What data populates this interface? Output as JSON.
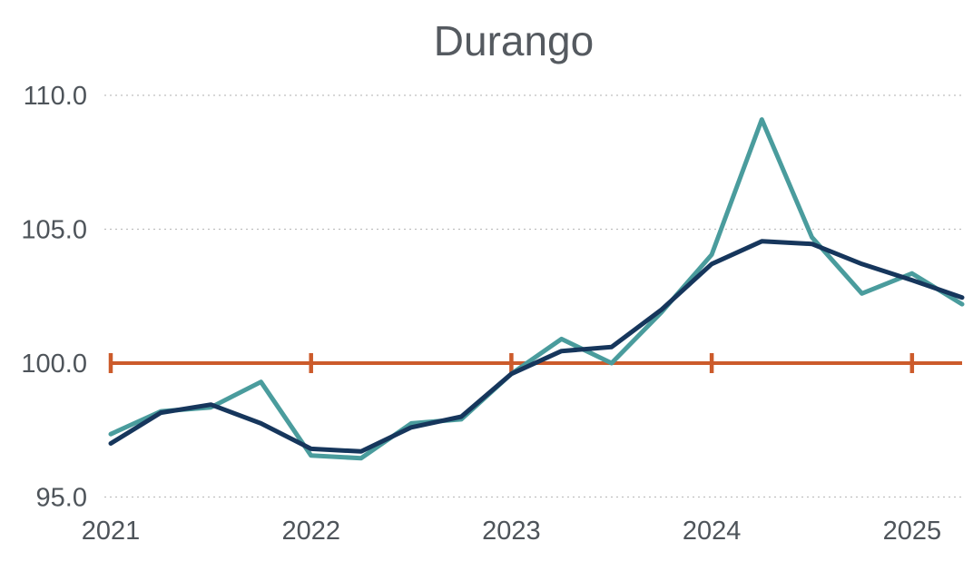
{
  "chart_data": {
    "type": "line",
    "title": "Durango",
    "xlabel": "",
    "ylabel": "",
    "x": [
      2021.0,
      2021.25,
      2021.5,
      2021.75,
      2022.0,
      2022.25,
      2022.5,
      2022.75,
      2023.0,
      2023.25,
      2023.5,
      2023.75,
      2024.0,
      2024.25,
      2024.5,
      2024.75,
      2025.0,
      2025.25
    ],
    "series": [
      {
        "name": "series-teal",
        "color": "#4A9C9D",
        "values": [
          97.35,
          98.2,
          98.35,
          99.3,
          96.55,
          96.45,
          97.75,
          97.9,
          99.6,
          100.9,
          100.0,
          101.9,
          104.05,
          109.1,
          104.7,
          102.6,
          103.35,
          102.2
        ]
      },
      {
        "name": "series-navy",
        "color": "#16365C",
        "values": [
          97.0,
          98.15,
          98.45,
          97.75,
          96.8,
          96.7,
          97.6,
          98.0,
          99.6,
          100.45,
          100.6,
          102.0,
          103.7,
          104.55,
          104.45,
          103.7,
          103.1,
          102.45
        ]
      }
    ],
    "y_ticks": [
      {
        "label": "110.0",
        "value": 110
      },
      {
        "label": "105.0",
        "value": 105
      },
      {
        "label": "100.0",
        "value": 100
      },
      {
        "label": "95.0",
        "value": 95
      }
    ],
    "x_ticks": [
      {
        "label": "2021",
        "index": 0
      },
      {
        "label": "2022",
        "index": 4
      },
      {
        "label": "2023",
        "index": 8
      },
      {
        "label": "2024",
        "index": 12
      },
      {
        "label": "2025",
        "index": 16
      }
    ],
    "ylim": [
      95,
      110
    ],
    "grid": "horizontal-dotted",
    "legend": "none",
    "reference_line": {
      "value": 100.0,
      "color": "#CC5B2B"
    },
    "colors": {
      "grid": "#BFBFBF",
      "title_text": "#555A60",
      "axis_text": "#4E545A",
      "background": "#FFFFFF"
    }
  }
}
